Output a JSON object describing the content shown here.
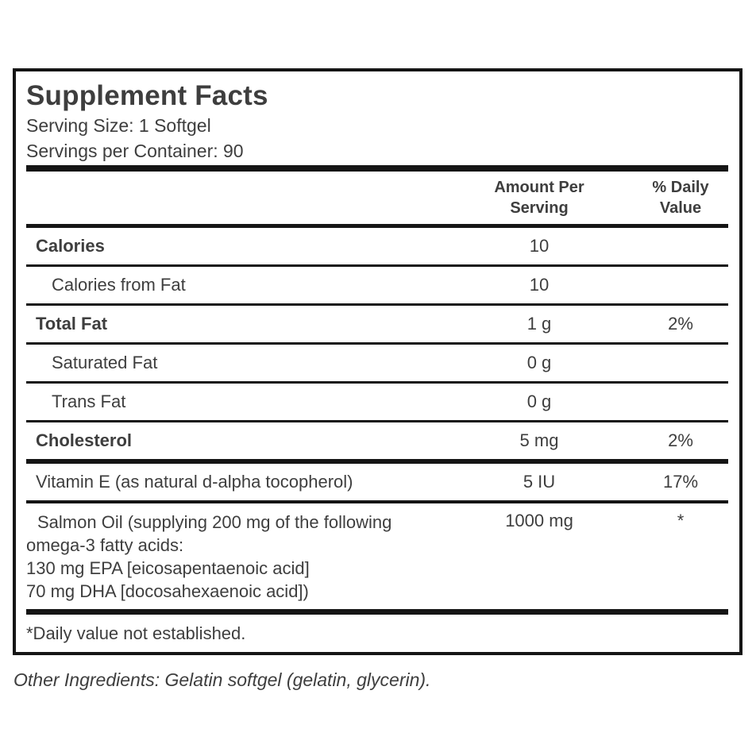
{
  "colors": {
    "text": "#3e3e3e",
    "rule": "#151515",
    "background": "#ffffff"
  },
  "supplement_panel": {
    "title": "Supplement Facts",
    "serving_size": "Serving Size: 1 Softgel",
    "servings_per_container": "Servings per Container: 90",
    "column_headers": {
      "amount": "Amount Per\nServing",
      "daily_value": "% Daily\nValue"
    },
    "rows": [
      {
        "label": "Calories",
        "amount": "10",
        "daily_value": ""
      },
      {
        "label": "Calories from Fat",
        "amount": "10",
        "daily_value": ""
      },
      {
        "label": "Total Fat",
        "amount": "1 g",
        "daily_value": "2%"
      },
      {
        "label": "Saturated Fat",
        "amount": "0 g",
        "daily_value": ""
      },
      {
        "label": "Trans Fat",
        "amount": "0 g",
        "daily_value": ""
      },
      {
        "label": "Cholesterol",
        "amount": "5 mg",
        "daily_value": "2%"
      },
      {
        "label": "Vitamin E (as natural d-alpha tocopherol)",
        "amount": "5 IU",
        "daily_value": "17%"
      },
      {
        "label": "Salmon Oil (supplying 200 mg of the following\nomega-3 fatty acids:\n130 mg EPA [eicosapentaenoic acid]\n70 mg DHA [docosahexaenoic acid])",
        "amount": "1000 mg",
        "daily_value": "*"
      }
    ],
    "footnote": "*Daily value not established."
  },
  "other_ingredients": "Other Ingredients: Gelatin softgel (gelatin, glycerin)."
}
